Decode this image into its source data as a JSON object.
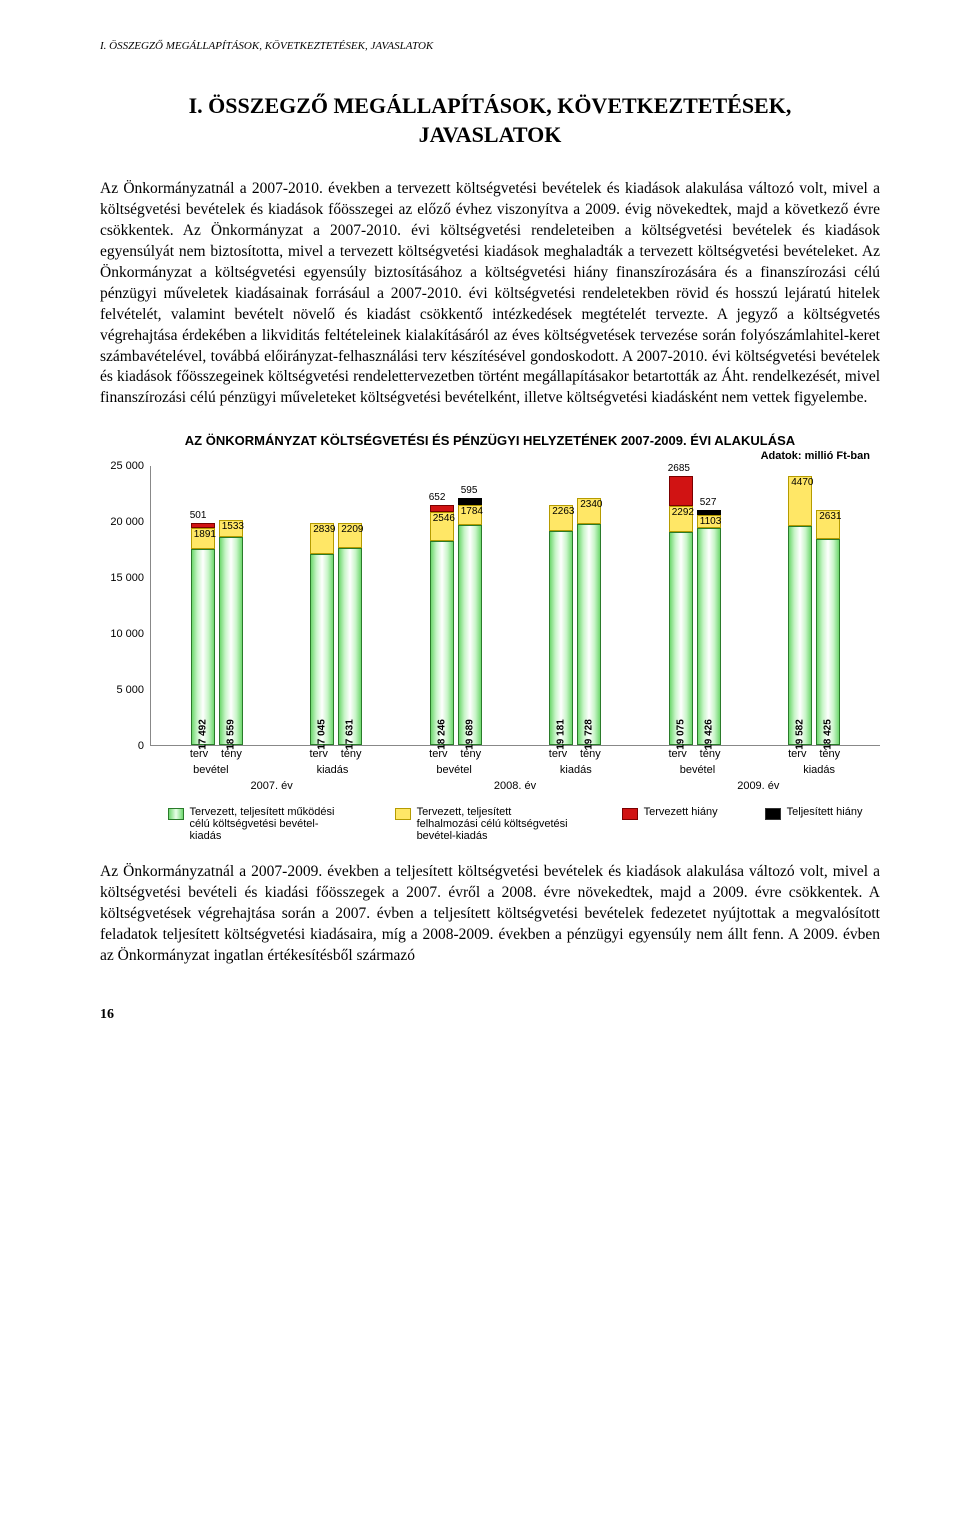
{
  "runningHeader": "I. ÖSSZEGZŐ MEGÁLLAPÍTÁSOK, KÖVETKEZTETÉSEK, JAVASLATOK",
  "title": "I. ÖSSZEGZŐ MEGÁLLAPÍTÁSOK, KÖVETKEZTETÉSEK, JAVASLATOK",
  "para1": "Az Önkormányzatnál a 2007-2010. években a tervezett költségvetési bevételek és kiadások alakulása változó volt, mivel a költségvetési bevételek és kiadások főösszegei az előző évhez viszonyítva a 2009. évig növekedtek, majd a következő évre csökkentek. Az Önkormányzat a 2007-2010. évi költségvetési rendeleteiben a költségvetési bevételek és kiadások egyensúlyát nem biztosította, mivel a tervezett költségvetési kiadások meghaladták a tervezett költségvetési bevételeket. Az Önkormányzat a költségvetési egyensúly biztosításához a költségvetési hiány finanszírozására és a finanszírozási célú pénzügyi műveletek kiadásainak forrásául a 2007-2010. évi költségvetési rendeletekben rövid és hosszú lejáratú hitelek felvételét, valamint bevételt növelő és kiadást csökkentő intézkedések megtételét tervezte. A jegyző a költségvetés végrehajtása érdekében a likviditás feltételeinek kialakításáról az éves költségvetések tervezése során folyószámlahitel-keret számbavételével, továbbá előirányzat-felhasználási terv készítésével gondoskodott. A 2007-2010. évi költségvetési bevételek és kiadások főösszegeinek költségvetési rendelettervezetben történt megállapításakor betartották az Áht. rendelkezését, mivel finanszírozási célú pénzügyi műveleteket költségvetési bevételként, illetve költségvetési kiadásként nem vettek figyelembe.",
  "chart": {
    "title": "AZ ÖNKORMÁNYZAT KÖLTSÉGVETÉSI ÉS PÉNZÜGYI HELYZETÉNEK 2007-2009. ÉVI ALAKULÁSA",
    "units": "Adatok: millió Ft-ban",
    "ymax": 25000,
    "yticks": [
      0,
      5000,
      10000,
      15000,
      20000,
      25000
    ],
    "yticklabels": [
      "0",
      "5 000",
      "10 000",
      "15 000",
      "20 000",
      "25 000"
    ],
    "groups": [
      {
        "year": "2007. év",
        "pairs": [
          {
            "cat": "bevétel",
            "terv": {
              "green": 17492,
              "yellow": 1891,
              "red": 501,
              "greenLabel": "17 492",
              "yellowLabel": "1891",
              "redLabel": "501"
            },
            "teny": {
              "green": 18559,
              "yellow": 1533,
              "greenLabel": "18 559",
              "yellowLabel": "1533"
            }
          },
          {
            "cat": "kiadás",
            "terv": {
              "green": 17045,
              "yellow": 2839,
              "greenLabel": "17 045",
              "yellowLabel": "2839"
            },
            "teny": {
              "green": 17631,
              "yellow": 2209,
              "greenLabel": "17 631",
              "yellowLabel": "2209"
            }
          }
        ]
      },
      {
        "year": "2008. év",
        "pairs": [
          {
            "cat": "bevétel",
            "terv": {
              "green": 18246,
              "yellow": 2546,
              "red": 652,
              "greenLabel": "18 246",
              "yellowLabel": "2546",
              "redLabel": "652"
            },
            "teny": {
              "green": 19689,
              "yellow": 1784,
              "black": 595,
              "greenLabel": "19 689",
              "yellowLabel": "1784",
              "blackLabel": "595"
            }
          },
          {
            "cat": "kiadás",
            "terv": {
              "green": 19181,
              "yellow": 2263,
              "greenLabel": "19 181",
              "yellowLabel": "2263"
            },
            "teny": {
              "green": 19728,
              "yellow": 2340,
              "greenLabel": "19 728",
              "yellowLabel": "2340"
            }
          }
        ]
      },
      {
        "year": "2009. év",
        "pairs": [
          {
            "cat": "bevétel",
            "terv": {
              "green": 19075,
              "yellow": 2292,
              "red": 2685,
              "greenLabel": "19 075",
              "yellowLabel": "2292",
              "redLabel": "2685"
            },
            "teny": {
              "green": 19426,
              "yellow": 1103,
              "black": 527,
              "greenLabel": "19 426",
              "yellowLabel": "1103",
              "blackLabel": "527"
            }
          },
          {
            "cat": "kiadás",
            "terv": {
              "green": 19582,
              "yellow": 4470,
              "greenLabel": "19 582",
              "yellowLabel": "4470"
            },
            "teny": {
              "green": 18425,
              "yellow": 2631,
              "greenLabel": "18 425",
              "yellowLabel": "2631"
            }
          }
        ]
      }
    ],
    "xTervTeny": [
      "terv",
      "tény"
    ],
    "legend": [
      {
        "cls": "swatch-green",
        "text": "Tervezett, teljesített működési célú költségvetési bevétel-kiadás"
      },
      {
        "cls": "swatch-yellow",
        "text": "Tervezett, teljesített felhalmozási célú költségvetési bevétel-kiadás"
      },
      {
        "cls": "swatch-red",
        "text": "Tervezett hiány"
      },
      {
        "cls": "swatch-black",
        "text": "Teljesített hiány"
      }
    ]
  },
  "para2": "Az Önkormányzatnál a 2007-2009. években a teljesített költségvetési bevételek és kiadások alakulása változó volt, mivel a költségvetési bevételi és kiadási főösszegek a 2007. évről a 2008. évre növekedtek, majd a 2009. évre csökkentek. A költségvetések végrehajtása során a 2007. évben a teljesített költségvetési bevételek fedezetet nyújtottak a megvalósított feladatok teljesített költségvetési kiadásaira, míg a 2008-2009. években a pénzügyi egyensúly nem állt fenn. A 2009. évben az Önkormányzat ingatlan értékesítésből származó",
  "pageNumber": "16"
}
